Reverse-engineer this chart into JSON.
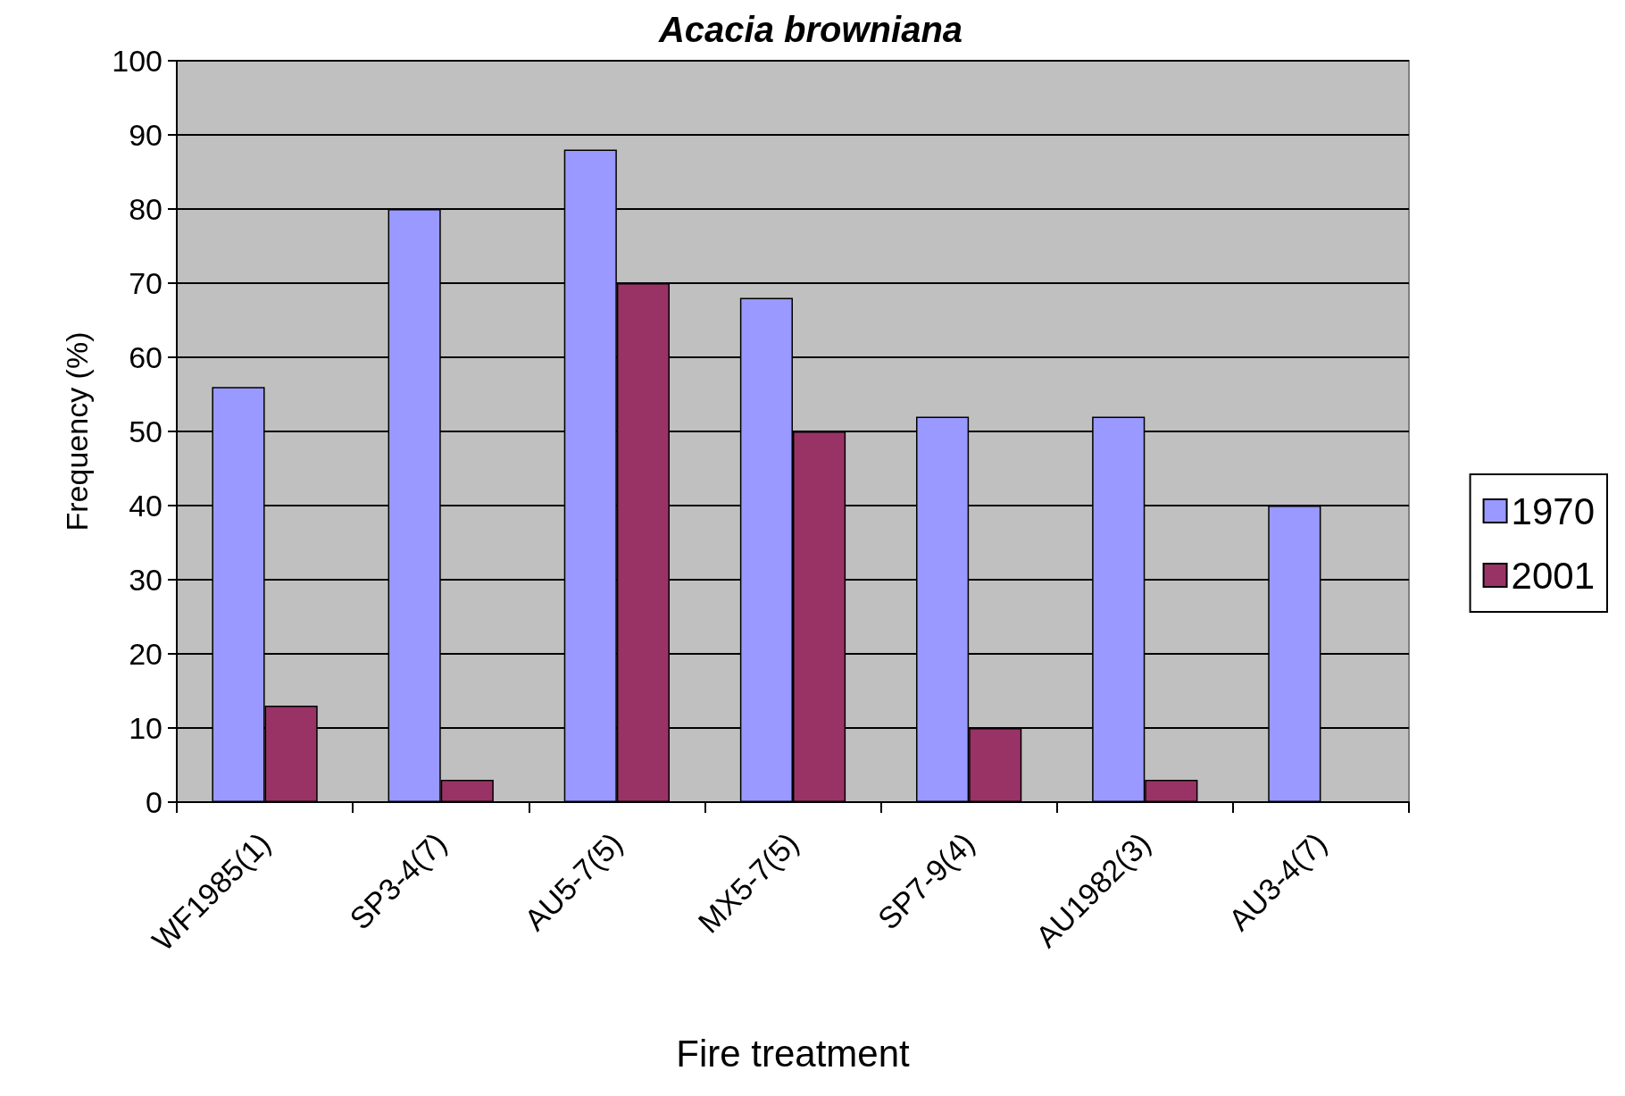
{
  "chart_data": {
    "type": "bar",
    "title": "Acacia browniana",
    "xlabel": "Fire treatment",
    "ylabel": "Frequency (%)",
    "categories": [
      "WF1985(1)",
      "SP3-4(7)",
      "AU5-7(5)",
      "MX5-7(5)",
      "SP7-9(4)",
      "AU1982(3)",
      "AU3-4(7)"
    ],
    "series": [
      {
        "name": "1970",
        "color": "#9999ff",
        "values": [
          56,
          80,
          88,
          68,
          52,
          52,
          40
        ]
      },
      {
        "name": "2001",
        "color": "#993366",
        "values": [
          13,
          3,
          70,
          50,
          10,
          3,
          null
        ]
      }
    ],
    "ylim": [
      0,
      100
    ],
    "yticks": [
      0,
      10,
      20,
      30,
      40,
      50,
      60,
      70,
      80,
      90,
      100
    ],
    "grid": "y",
    "legend": "right"
  }
}
